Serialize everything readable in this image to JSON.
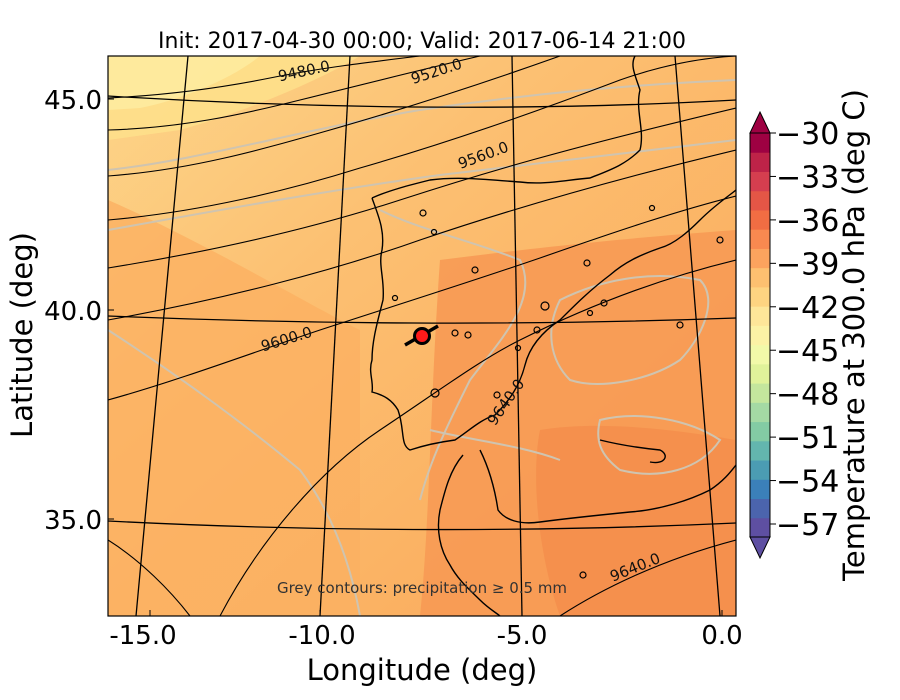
{
  "title": "Init: 2017-04-30 00:00; Valid: 2017-06-14 21:00",
  "xlabel": "Longitude (deg)",
  "ylabel": "Latitude (deg)",
  "x_ticks": [
    "-15.0",
    "-10.0",
    "-5.0",
    "0.0"
  ],
  "y_ticks": [
    "45.0",
    "40.0",
    "35.0"
  ],
  "colorbar": {
    "label": "Temperature at 300.0 hPa (deg C)",
    "ticks": [
      "−30",
      "−33",
      "−36",
      "−39",
      "−42",
      "−45",
      "−48",
      "−51",
      "−54",
      "−57"
    ],
    "extend": "both",
    "colors": [
      "#5e4fa2",
      "#4b64ad",
      "#3b80b9",
      "#4b9cb3",
      "#63b6ae",
      "#83cba4",
      "#a4d9a4",
      "#c4e69d",
      "#e0f29a",
      "#f2f9a9",
      "#fcf2a5",
      "#fee699",
      "#fed481",
      "#fdc070",
      "#fca35e",
      "#f88950",
      "#f16d43",
      "#e45646",
      "#d53e4f",
      "#be2348",
      "#9e0142"
    ]
  },
  "geopotential_labels": [
    "9480.0",
    "9520.0",
    "9560.0",
    "9600.0",
    "9640.0",
    "9640.0"
  ],
  "annotation": "Grey contours: precipitation ≥ 0.5 mm",
  "marker": {
    "lon": -7.7,
    "lat": 39.4
  },
  "chart_data": {
    "type": "heatmap",
    "variable": "Temperature at 300.0 hPa (deg C)",
    "xlim": [
      -16,
      0.3
    ],
    "ylim": [
      32.8,
      46.0
    ],
    "color_range": [
      -57,
      -30
    ],
    "contour_levels_geopotential": [
      9480.0,
      9520.0,
      9560.0,
      9600.0,
      9640.0
    ]
  }
}
